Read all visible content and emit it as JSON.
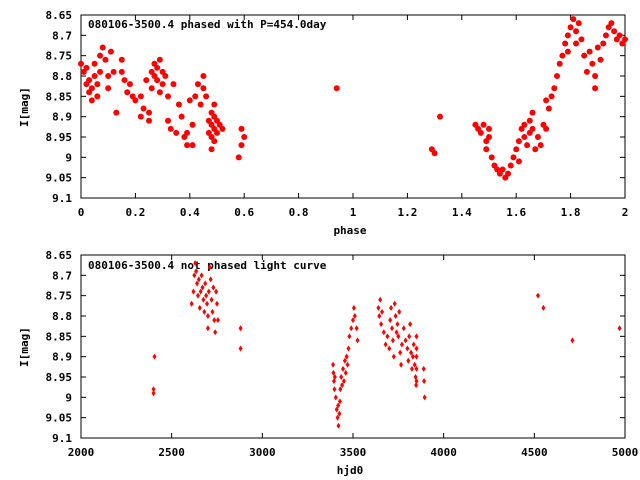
{
  "chart_data": [
    {
      "type": "scatter",
      "title": "080106-3500.4 phased with P=454.0day",
      "xlabel": "phase",
      "ylabel": "I[mag]",
      "xlim": [
        0,
        2
      ],
      "ylim": [
        8.65,
        9.1
      ],
      "y_inverted": true,
      "grid": false,
      "x_ticks": [
        "0",
        "0.2",
        "0.4",
        "0.6",
        "0.8",
        "1",
        "1.2",
        "1.4",
        "1.6",
        "1.8",
        "2"
      ],
      "y_ticks": [
        "8.65",
        "8.7",
        "8.75",
        "8.8",
        "8.85",
        "8.9",
        "8.95",
        "9",
        "9.05",
        "9.1"
      ],
      "marker_color": "#ff0000",
      "marker": "filled-circle",
      "points": [
        [
          0.0,
          8.77
        ],
        [
          0.01,
          8.79
        ],
        [
          0.02,
          8.78
        ],
        [
          0.02,
          8.82
        ],
        [
          0.03,
          8.84
        ],
        [
          0.03,
          8.81
        ],
        [
          0.04,
          8.86
        ],
        [
          0.04,
          8.83
        ],
        [
          0.05,
          8.8
        ],
        [
          0.05,
          8.77
        ],
        [
          0.06,
          8.85
        ],
        [
          0.06,
          8.82
        ],
        [
          0.07,
          8.79
        ],
        [
          0.07,
          8.75
        ],
        [
          0.08,
          8.73
        ],
        [
          0.09,
          8.76
        ],
        [
          0.1,
          8.8
        ],
        [
          0.1,
          8.83
        ],
        [
          0.11,
          8.74
        ],
        [
          0.12,
          8.79
        ],
        [
          0.13,
          8.89
        ],
        [
          0.15,
          8.79
        ],
        [
          0.15,
          8.76
        ],
        [
          0.16,
          8.81
        ],
        [
          0.17,
          8.84
        ],
        [
          0.18,
          8.82
        ],
        [
          0.19,
          8.85
        ],
        [
          0.2,
          8.86
        ],
        [
          0.22,
          8.9
        ],
        [
          0.22,
          8.85
        ],
        [
          0.23,
          8.88
        ],
        [
          0.24,
          8.81
        ],
        [
          0.25,
          8.89
        ],
        [
          0.25,
          8.91
        ],
        [
          0.26,
          8.83
        ],
        [
          0.26,
          8.79
        ],
        [
          0.27,
          8.77
        ],
        [
          0.27,
          8.8
        ],
        [
          0.28,
          8.78
        ],
        [
          0.28,
          8.81
        ],
        [
          0.29,
          8.84
        ],
        [
          0.29,
          8.76
        ],
        [
          0.3,
          8.79
        ],
        [
          0.3,
          8.82
        ],
        [
          0.31,
          8.8
        ],
        [
          0.32,
          8.85
        ],
        [
          0.32,
          8.91
        ],
        [
          0.33,
          8.93
        ],
        [
          0.34,
          8.82
        ],
        [
          0.35,
          8.94
        ],
        [
          0.36,
          8.87
        ],
        [
          0.37,
          8.9
        ],
        [
          0.38,
          8.95
        ],
        [
          0.39,
          8.97
        ],
        [
          0.39,
          8.94
        ],
        [
          0.4,
          8.86
        ],
        [
          0.41,
          8.92
        ],
        [
          0.41,
          8.97
        ],
        [
          0.42,
          8.85
        ],
        [
          0.43,
          8.82
        ],
        [
          0.44,
          8.87
        ],
        [
          0.45,
          8.8
        ],
        [
          0.45,
          8.83
        ],
        [
          0.46,
          8.85
        ],
        [
          0.47,
          8.91
        ],
        [
          0.47,
          8.94
        ],
        [
          0.48,
          8.89
        ],
        [
          0.48,
          8.92
        ],
        [
          0.48,
          8.95
        ],
        [
          0.48,
          8.98
        ],
        [
          0.49,
          8.87
        ],
        [
          0.49,
          8.9
        ],
        [
          0.49,
          8.93
        ],
        [
          0.49,
          8.96
        ],
        [
          0.5,
          8.91
        ],
        [
          0.5,
          8.94
        ],
        [
          0.51,
          8.92
        ],
        [
          0.52,
          8.93
        ],
        [
          0.58,
          9.0
        ],
        [
          0.59,
          8.97
        ],
        [
          0.59,
          8.93
        ],
        [
          0.6,
          8.95
        ],
        [
          0.94,
          8.83
        ],
        [
          1.29,
          8.98
        ],
        [
          1.3,
          8.99
        ],
        [
          1.32,
          8.9
        ],
        [
          1.45,
          8.92
        ],
        [
          1.46,
          8.93
        ],
        [
          1.47,
          8.94
        ],
        [
          1.48,
          8.92
        ],
        [
          1.49,
          8.96
        ],
        [
          1.49,
          8.98
        ],
        [
          1.5,
          8.95
        ],
        [
          1.5,
          8.93
        ],
        [
          1.51,
          9.0
        ],
        [
          1.52,
          9.02
        ],
        [
          1.53,
          9.03
        ],
        [
          1.54,
          9.04
        ],
        [
          1.55,
          9.03
        ],
        [
          1.56,
          9.05
        ],
        [
          1.57,
          9.04
        ],
        [
          1.58,
          9.02
        ],
        [
          1.59,
          9.0
        ],
        [
          1.6,
          8.98
        ],
        [
          1.61,
          9.01
        ],
        [
          1.61,
          8.96
        ],
        [
          1.62,
          8.93
        ],
        [
          1.63,
          8.92
        ],
        [
          1.63,
          8.95
        ],
        [
          1.64,
          8.97
        ],
        [
          1.65,
          8.94
        ],
        [
          1.65,
          8.91
        ],
        [
          1.66,
          8.89
        ],
        [
          1.66,
          8.93
        ],
        [
          1.67,
          8.98
        ],
        [
          1.68,
          8.95
        ],
        [
          1.69,
          8.97
        ],
        [
          1.7,
          8.92
        ],
        [
          1.71,
          8.93
        ],
        [
          1.71,
          8.86
        ],
        [
          1.72,
          8.88
        ],
        [
          1.73,
          8.85
        ],
        [
          1.74,
          8.83
        ],
        [
          1.75,
          8.8
        ],
        [
          1.76,
          8.77
        ],
        [
          1.77,
          8.75
        ],
        [
          1.78,
          8.72
        ],
        [
          1.79,
          8.7
        ],
        [
          1.79,
          8.74
        ],
        [
          1.8,
          8.68
        ],
        [
          1.81,
          8.66
        ],
        [
          1.82,
          8.69
        ],
        [
          1.82,
          8.72
        ],
        [
          1.83,
          8.67
        ],
        [
          1.84,
          8.71
        ],
        [
          1.85,
          8.75
        ],
        [
          1.86,
          8.79
        ],
        [
          1.87,
          8.74
        ],
        [
          1.88,
          8.77
        ],
        [
          1.89,
          8.8
        ],
        [
          1.89,
          8.83
        ],
        [
          1.9,
          8.73
        ],
        [
          1.91,
          8.76
        ],
        [
          1.92,
          8.72
        ],
        [
          1.93,
          8.7
        ],
        [
          1.94,
          8.68
        ],
        [
          1.95,
          8.67
        ],
        [
          1.96,
          8.69
        ],
        [
          1.97,
          8.71
        ],
        [
          1.98,
          8.7
        ],
        [
          1.99,
          8.72
        ],
        [
          2.0,
          8.71
        ]
      ]
    },
    {
      "type": "scatter",
      "title": "080106-3500.4 not phased light curve",
      "xlabel": "hjd0",
      "ylabel": "I[mag]",
      "xlim": [
        2000,
        5000
      ],
      "ylim": [
        8.65,
        9.1
      ],
      "y_inverted": true,
      "grid": false,
      "x_ticks": [
        "2000",
        "2500",
        "3000",
        "3500",
        "4000",
        "4500",
        "5000"
      ],
      "y_ticks": [
        "8.65",
        "8.7",
        "8.75",
        "8.8",
        "8.85",
        "8.9",
        "8.95",
        "9",
        "9.05",
        "9.1"
      ],
      "marker_color": "#ff0000",
      "marker": "filled-diamond",
      "points": [
        [
          2400,
          8.98
        ],
        [
          2400,
          8.99
        ],
        [
          2405,
          8.9
        ],
        [
          2610,
          8.77
        ],
        [
          2620,
          8.74
        ],
        [
          2625,
          8.7
        ],
        [
          2630,
          8.67
        ],
        [
          2635,
          8.69
        ],
        [
          2640,
          8.72
        ],
        [
          2645,
          8.75
        ],
        [
          2650,
          8.71
        ],
        [
          2655,
          8.78
        ],
        [
          2660,
          8.74
        ],
        [
          2665,
          8.7
        ],
        [
          2670,
          8.73
        ],
        [
          2675,
          8.76
        ],
        [
          2680,
          8.79
        ],
        [
          2685,
          8.72
        ],
        [
          2690,
          8.75
        ],
        [
          2695,
          8.77
        ],
        [
          2700,
          8.8
        ],
        [
          2700,
          8.83
        ],
        [
          2705,
          8.74
        ],
        [
          2710,
          8.68
        ],
        [
          2715,
          8.71
        ],
        [
          2720,
          8.76
        ],
        [
          2725,
          8.79
        ],
        [
          2730,
          8.73
        ],
        [
          2735,
          8.81
        ],
        [
          2740,
          8.84
        ],
        [
          2745,
          8.74
        ],
        [
          2750,
          8.77
        ],
        [
          2755,
          8.81
        ],
        [
          2880,
          8.83
        ],
        [
          2880,
          8.88
        ],
        [
          3390,
          8.92
        ],
        [
          3392,
          8.94
        ],
        [
          3395,
          8.96
        ],
        [
          3398,
          8.98
        ],
        [
          3400,
          8.95
        ],
        [
          3405,
          9.0
        ],
        [
          3410,
          9.03
        ],
        [
          3415,
          9.05
        ],
        [
          3418,
          9.02
        ],
        [
          3420,
          9.07
        ],
        [
          3425,
          9.04
        ],
        [
          3428,
          9.01
        ],
        [
          3430,
          8.98
        ],
        [
          3435,
          8.95
        ],
        [
          3440,
          8.97
        ],
        [
          3445,
          8.93
        ],
        [
          3450,
          8.96
        ],
        [
          3455,
          8.91
        ],
        [
          3460,
          8.94
        ],
        [
          3465,
          8.9
        ],
        [
          3470,
          8.92
        ],
        [
          3475,
          8.88
        ],
        [
          3480,
          8.85
        ],
        [
          3490,
          8.83
        ],
        [
          3500,
          8.81
        ],
        [
          3505,
          8.78
        ],
        [
          3510,
          8.8
        ],
        [
          3520,
          8.83
        ],
        [
          3525,
          8.86
        ],
        [
          3640,
          8.78
        ],
        [
          3645,
          8.8
        ],
        [
          3650,
          8.76
        ],
        [
          3655,
          8.82
        ],
        [
          3660,
          8.79
        ],
        [
          3670,
          8.84
        ],
        [
          3680,
          8.87
        ],
        [
          3690,
          8.85
        ],
        [
          3700,
          8.88
        ],
        [
          3705,
          8.81
        ],
        [
          3710,
          8.78
        ],
        [
          3715,
          8.83
        ],
        [
          3720,
          8.86
        ],
        [
          3725,
          8.9
        ],
        [
          3730,
          8.77
        ],
        [
          3735,
          8.8
        ],
        [
          3740,
          8.84
        ],
        [
          3745,
          8.82
        ],
        [
          3750,
          8.85
        ],
        [
          3755,
          8.79
        ],
        [
          3760,
          8.89
        ],
        [
          3765,
          8.92
        ],
        [
          3770,
          8.87
        ],
        [
          3780,
          8.83
        ],
        [
          3790,
          8.86
        ],
        [
          3800,
          8.88
        ],
        [
          3805,
          8.91
        ],
        [
          3810,
          8.85
        ],
        [
          3815,
          8.82
        ],
        [
          3820,
          8.89
        ],
        [
          3825,
          8.93
        ],
        [
          3830,
          8.9
        ],
        [
          3835,
          8.87
        ],
        [
          3840,
          8.92
        ],
        [
          3845,
          8.95
        ],
        [
          3848,
          8.97
        ],
        [
          3850,
          8.85
        ],
        [
          3850,
          8.88
        ],
        [
          3850,
          8.9
        ],
        [
          3850,
          8.93
        ],
        [
          3850,
          8.96
        ],
        [
          3890,
          8.93
        ],
        [
          3892,
          8.96
        ],
        [
          3895,
          9.0
        ],
        [
          4520,
          8.75
        ],
        [
          4550,
          8.78
        ],
        [
          4710,
          8.86
        ],
        [
          4970,
          8.83
        ]
      ]
    }
  ]
}
